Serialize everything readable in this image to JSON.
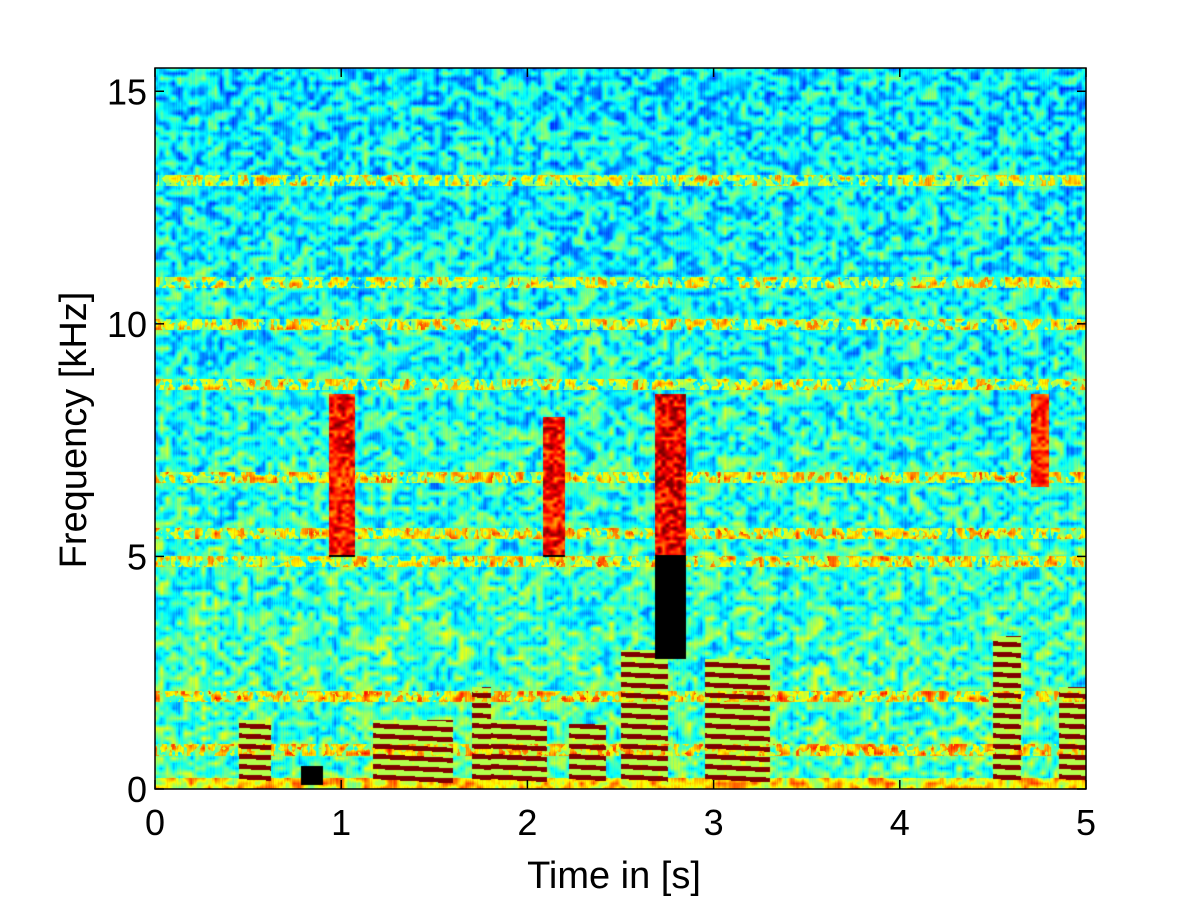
{
  "chart_data": {
    "type": "heatmap",
    "title": "",
    "xlabel": "Time in [s]",
    "ylabel": "Frequency [kHz]",
    "xlim": [
      0,
      5
    ],
    "ylim": [
      0,
      15.5
    ],
    "x_ticks": [
      0,
      1,
      2,
      3,
      4,
      5
    ],
    "y_ticks": [
      0,
      5,
      10,
      15
    ],
    "x_tick_labels": [
      "0",
      "1",
      "2",
      "3",
      "4",
      "5"
    ],
    "y_tick_labels": [
      "0",
      "5",
      "10",
      "15"
    ],
    "colormap": "jet",
    "grid": false,
    "background_level": 0.45,
    "high_energy_regions": [
      {
        "t": [
          0.45,
          0.62
        ],
        "f": [
          0.1,
          1.5
        ],
        "level": 0.95,
        "kind": "harmonic"
      },
      {
        "t": [
          0.78,
          0.9
        ],
        "f": [
          0.1,
          0.5
        ],
        "level": 0.85,
        "kind": "voiced"
      },
      {
        "t": [
          0.93,
          1.07
        ],
        "f": [
          5.0,
          8.5
        ],
        "level": 0.85,
        "kind": "fricative"
      },
      {
        "t": [
          1.17,
          1.6
        ],
        "f": [
          0.1,
          1.5
        ],
        "level": 0.95,
        "kind": "harmonic"
      },
      {
        "t": [
          1.7,
          1.8
        ],
        "f": [
          0.1,
          2.2
        ],
        "level": 0.9,
        "kind": "harmonic"
      },
      {
        "t": [
          1.8,
          2.1
        ],
        "f": [
          0.1,
          1.5
        ],
        "level": 0.92,
        "kind": "harmonic"
      },
      {
        "t": [
          2.08,
          2.2
        ],
        "f": [
          5.0,
          8.0
        ],
        "level": 0.85,
        "kind": "fricative"
      },
      {
        "t": [
          2.22,
          2.42
        ],
        "f": [
          0.1,
          1.4
        ],
        "level": 0.9,
        "kind": "harmonic"
      },
      {
        "t": [
          2.5,
          2.75
        ],
        "f": [
          0.1,
          3.0
        ],
        "level": 0.85,
        "kind": "harmonic"
      },
      {
        "t": [
          2.68,
          2.85
        ],
        "f": [
          2.8,
          8.5
        ],
        "level": 0.9,
        "kind": "fricative"
      },
      {
        "t": [
          2.95,
          3.3
        ],
        "f": [
          0.1,
          2.8
        ],
        "level": 0.93,
        "kind": "harmonic"
      },
      {
        "t": [
          4.5,
          4.65
        ],
        "f": [
          0.2,
          3.3
        ],
        "level": 0.92,
        "kind": "harmonic"
      },
      {
        "t": [
          4.7,
          4.8
        ],
        "f": [
          6.5,
          8.5
        ],
        "level": 0.8,
        "kind": "fricative"
      },
      {
        "t": [
          4.85,
          5.0
        ],
        "f": [
          0.1,
          2.2
        ],
        "level": 0.9,
        "kind": "harmonic"
      }
    ],
    "horizontal_tone_lines_khz": [
      13.1,
      10.9,
      10.0,
      8.7,
      6.7,
      5.5,
      4.9,
      2.0,
      0.85
    ]
  }
}
